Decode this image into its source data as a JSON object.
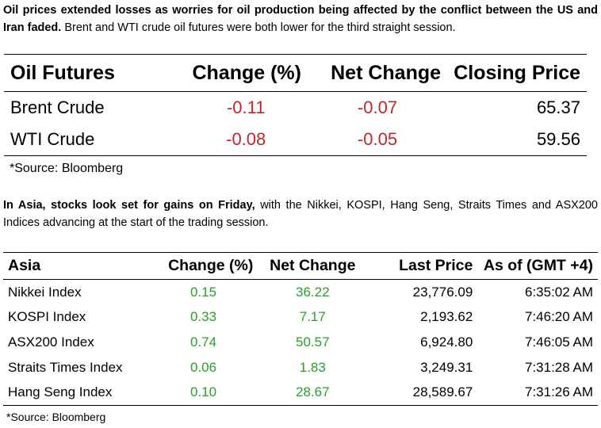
{
  "intro": {
    "lead_bold": "Oil prices extended losses as worries for oil production being affected by the conflict between the US and Iran faded.",
    "rest": " Brent and WTI crude oil futures were both lower for the third straight session."
  },
  "oil_table": {
    "headers": [
      "Oil Futures",
      "Change (%)",
      "Net Change",
      "Closing Price"
    ],
    "rows": [
      {
        "name": "Brent Crude",
        "change_pct": "-0.11",
        "net_change": "-0.07",
        "closing_price": "65.37"
      },
      {
        "name": "WTI Crude",
        "change_pct": "-0.08",
        "net_change": "-0.05",
        "closing_price": "59.56"
      }
    ],
    "source": "*Source: Bloomberg"
  },
  "asia_intro": {
    "lead_bold": "In Asia, stocks look set for gains on Friday,",
    "rest": " with the Nikkei, KOSPI, Hang Seng, Straits Times and ASX200 Indices advancing at the start of the trading session."
  },
  "asia_table": {
    "headers": [
      "Asia",
      "Change (%)",
      "Net Change",
      "Last Price",
      "As of (GMT +4)"
    ],
    "rows": [
      {
        "name": "Nikkei Index",
        "change_pct": "0.15",
        "net_change": "36.22",
        "last_price": "23,776.09",
        "as_of": "6:35:02 AM"
      },
      {
        "name": "KOSPI Index",
        "change_pct": "0.33",
        "net_change": "7.17",
        "last_price": "2,193.62",
        "as_of": "7:46:20 AM"
      },
      {
        "name": "ASX200 Index",
        "change_pct": "0.74",
        "net_change": "50.57",
        "last_price": "6,924.80",
        "as_of": "7:46:05 AM"
      },
      {
        "name": "Straits Times Index",
        "change_pct": "0.06",
        "net_change": "1.83",
        "last_price": "3,249.31",
        "as_of": "7:31:28 AM"
      },
      {
        "name": "Hang Seng Index",
        "change_pct": "0.10",
        "net_change": "28.67",
        "last_price": "28,589.67",
        "as_of": "7:31:26 AM"
      }
    ],
    "source": "*Source: Bloomberg"
  },
  "colors": {
    "negative": "#c0272d",
    "positive": "#2aa12a"
  }
}
